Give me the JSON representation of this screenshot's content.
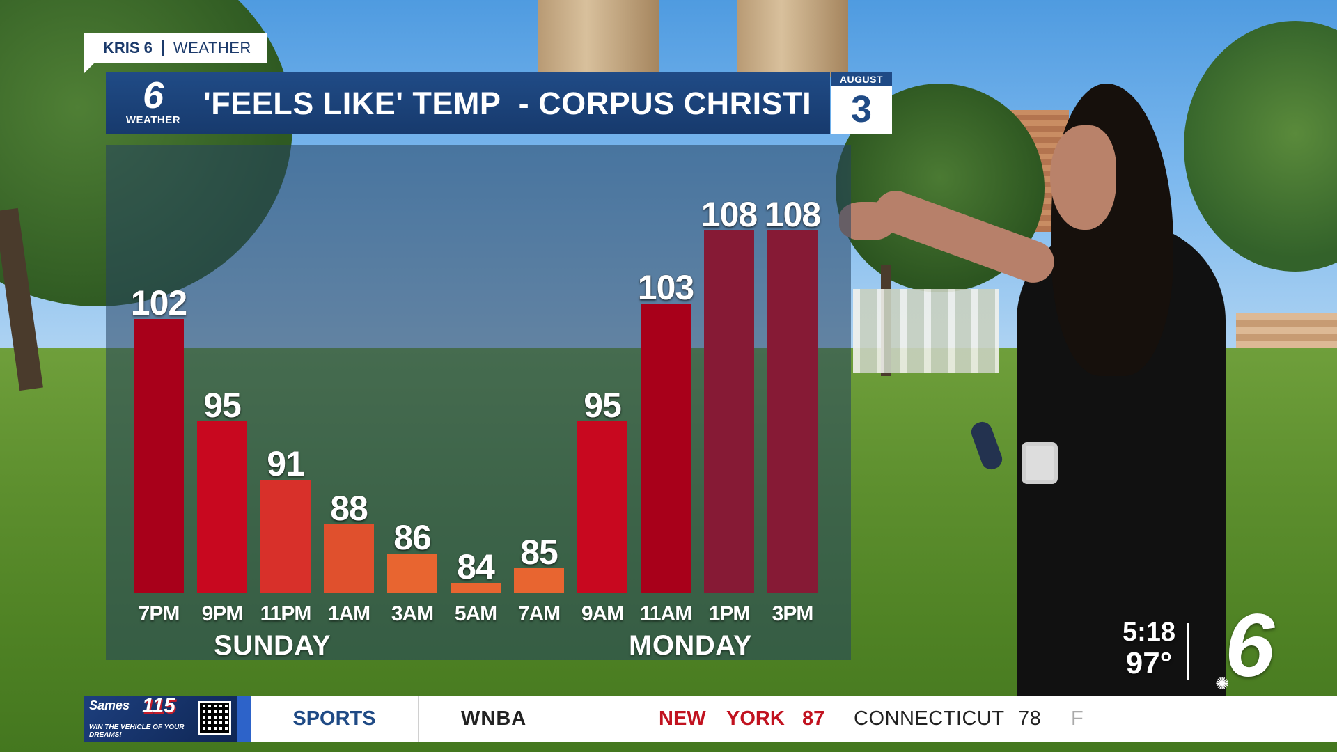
{
  "brand": {
    "station": "KRIS 6",
    "section": "WEATHER"
  },
  "title_bar": {
    "logo_number": "6",
    "logo_text": "WEATHER",
    "title": "'FEELS LIKE' TEMP  - CORPUS CHRISTI"
  },
  "date": {
    "month": "AUGUST",
    "day": "3"
  },
  "chart_data": {
    "type": "bar",
    "title": "'FEELS LIKE' TEMP  - CORPUS CHRISTI",
    "categories": [
      "7PM",
      "9PM",
      "11PM",
      "1AM",
      "3AM",
      "5AM",
      "7AM",
      "9AM",
      "11AM",
      "1PM",
      "3PM"
    ],
    "values": [
      102,
      95,
      91,
      88,
      86,
      84,
      85,
      95,
      103,
      108,
      108
    ],
    "value_labels": [
      "102",
      "95",
      "91",
      "88",
      "86",
      "84",
      "85",
      "95",
      "103",
      "108",
      "108"
    ],
    "bar_colors": [
      "#a8001a",
      "#c8081f",
      "#d8302a",
      "#e0502d",
      "#e86530",
      "#e86530",
      "#e86530",
      "#c8081f",
      "#a8001a",
      "#861a35",
      "#861a35"
    ],
    "day_groups": [
      {
        "label": "SUNDAY",
        "categories": [
          "7PM",
          "9PM",
          "11PM",
          "1AM",
          "3AM",
          "5AM",
          "7AM"
        ]
      },
      {
        "label": "MONDAY",
        "categories": [
          "9AM",
          "11AM",
          "1PM",
          "3PM"
        ]
      }
    ],
    "ylim": [
      84,
      108
    ],
    "grid": false,
    "legend": "none"
  },
  "corner": {
    "time": "5:18",
    "temp": "97°",
    "logo": "6"
  },
  "ticker": {
    "ad": {
      "brand": "Sames",
      "number": "115",
      "tagline": "WIN THE VEHICLE OF YOUR DREAMS!",
      "qr_icon": "qr-code-icon"
    },
    "category": "SPORTS",
    "league": "WNBA",
    "team1_word1": "NEW",
    "team1_word2": "YORK",
    "team1_score": "87",
    "team2": "CONNECTICUT",
    "team2_score": "78",
    "status": "F"
  }
}
